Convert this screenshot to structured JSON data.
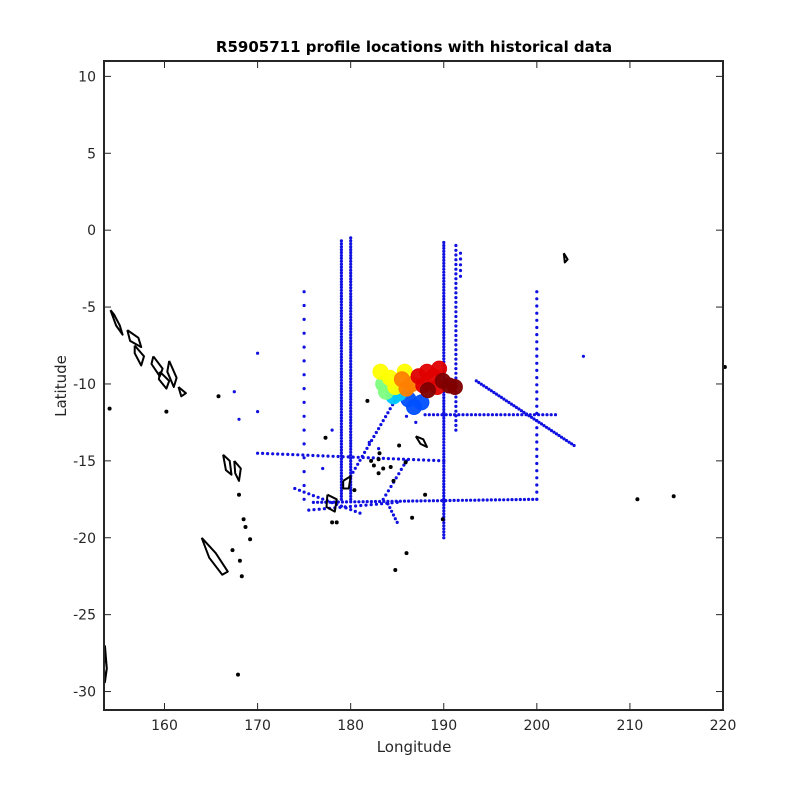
{
  "chart_data": {
    "type": "scatter",
    "title": "R5905711 profile locations with historical data",
    "xlabel": "Longitude",
    "ylabel": "Latitude",
    "xlim": [
      153.5,
      220
    ],
    "ylim": [
      -31.2,
      11
    ],
    "xticks": [
      160,
      170,
      180,
      190,
      200,
      210,
      220
    ],
    "yticks": [
      10,
      5,
      0,
      -5,
      -10,
      -15,
      -20,
      -25,
      -30
    ],
    "grid": false,
    "colors": {
      "historical": "#1010e0",
      "coastline": "#000000",
      "profile_colormap": [
        "#0000a0",
        "#0050ff",
        "#00c8ff",
        "#80ff80",
        "#ffff00",
        "#ff8000",
        "#e00000",
        "#800000"
      ]
    },
    "historical_tracks": [
      {
        "x": [
          179,
          179
        ],
        "y": [
          -0.7,
          -17.5
        ],
        "n": 90
      },
      {
        "x": [
          180,
          180
        ],
        "y": [
          -0.5,
          -17.5
        ],
        "n": 90
      },
      {
        "x": [
          190,
          190
        ],
        "y": [
          -0.8,
          -20
        ],
        "n": 100
      },
      {
        "x": [
          191.3,
          191.3
        ],
        "y": [
          -1,
          -13
        ],
        "n": 40
      },
      {
        "x": [
          191.8,
          191.8
        ],
        "y": [
          -1.5,
          -3
        ],
        "n": 5
      },
      {
        "x": [
          175,
          175
        ],
        "y": [
          -4,
          -17.5
        ],
        "n": 16
      },
      {
        "x": [
          200,
          200
        ],
        "y": [
          -4,
          -17.5
        ],
        "n": 30
      },
      {
        "x": [
          170,
          190
        ],
        "y": [
          -14.5,
          -15
        ],
        "n": 38
      },
      {
        "x": [
          176,
          200
        ],
        "y": [
          -17.7,
          -17.5
        ],
        "n": 55
      },
      {
        "x": [
          188,
          202
        ],
        "y": [
          -12,
          -12
        ],
        "n": 32
      },
      {
        "x": [
          193.5,
          204
        ],
        "y": [
          -9.8,
          -14
        ],
        "n": 40
      },
      {
        "x": [
          180,
          186
        ],
        "y": [
          -16,
          -9.8
        ],
        "n": 25
      },
      {
        "x": [
          174,
          181
        ],
        "y": [
          -16.8,
          -18.4
        ],
        "n": 15
      },
      {
        "x": [
          175.5,
          185
        ],
        "y": [
          -18.2,
          -17.7
        ],
        "n": 18
      },
      {
        "x": [
          183.5,
          186
        ],
        "y": [
          -17.5,
          -15
        ],
        "n": 10
      },
      {
        "x": [
          184,
          185
        ],
        "y": [
          -17.8,
          -19
        ],
        "n": 6
      }
    ],
    "historical_points": [
      [
        170,
        -8
      ],
      [
        167.5,
        -10.5
      ],
      [
        170,
        -11.8
      ],
      [
        168,
        -12.3
      ],
      [
        205,
        -8.2
      ],
      [
        186,
        -12.1
      ],
      [
        178,
        -13
      ],
      [
        177,
        -15.5
      ],
      [
        182,
        -13.8
      ],
      [
        183,
        -14.2
      ],
      [
        187,
        -12.5
      ]
    ],
    "profiles": [
      {
        "x": 183.5,
        "y": -10.0,
        "c": 0.45
      },
      {
        "x": 184.2,
        "y": -9.6,
        "c": 0.55
      },
      {
        "x": 184.8,
        "y": -10.2,
        "c": 0.6
      },
      {
        "x": 185.5,
        "y": -9.7,
        "c": 0.65
      },
      {
        "x": 183.2,
        "y": -9.2,
        "c": 0.5
      },
      {
        "x": 184.6,
        "y": -10.8,
        "c": 0.3
      },
      {
        "x": 185.2,
        "y": -10.6,
        "c": 0.25
      },
      {
        "x": 186.2,
        "y": -11.0,
        "c": 0.2
      },
      {
        "x": 186.8,
        "y": -11.5,
        "c": 0.15
      },
      {
        "x": 187.6,
        "y": -11.2,
        "c": 0.18
      },
      {
        "x": 186.0,
        "y": -10.3,
        "c": 0.7
      },
      {
        "x": 186.6,
        "y": -10.0,
        "c": 0.75
      },
      {
        "x": 187.3,
        "y": -9.5,
        "c": 0.8
      },
      {
        "x": 187.8,
        "y": -10.1,
        "c": 0.85
      },
      {
        "x": 188.2,
        "y": -9.2,
        "c": 0.82
      },
      {
        "x": 188.9,
        "y": -9.5,
        "c": 0.88
      },
      {
        "x": 189.3,
        "y": -10.2,
        "c": 0.9
      },
      {
        "x": 189.9,
        "y": -9.8,
        "c": 0.93
      },
      {
        "x": 190.6,
        "y": -10.1,
        "c": 0.96
      },
      {
        "x": 191.2,
        "y": -10.2,
        "c": 0.97
      },
      {
        "x": 189.5,
        "y": -9.0,
        "c": 0.85
      },
      {
        "x": 188.3,
        "y": -10.4,
        "c": 0.98
      },
      {
        "x": 183.8,
        "y": -10.5,
        "c": 0.4
      },
      {
        "x": 185.8,
        "y": -9.2,
        "c": 0.6
      }
    ],
    "coastlines": [
      [
        [
          154.2,
          -5.2
        ],
        [
          154.8,
          -6.2
        ],
        [
          155.5,
          -6.8
        ],
        [
          155.2,
          -6.2
        ],
        [
          154.6,
          -5.5
        ],
        [
          154.2,
          -5.2
        ]
      ],
      [
        [
          156.0,
          -6.5
        ],
        [
          157.2,
          -7.0
        ],
        [
          157.5,
          -7.6
        ],
        [
          156.3,
          -7.2
        ],
        [
          156.0,
          -6.5
        ]
      ],
      [
        [
          156.8,
          -7.5
        ],
        [
          157.8,
          -8.2
        ],
        [
          157.5,
          -8.8
        ],
        [
          156.8,
          -8.0
        ],
        [
          156.8,
          -7.5
        ]
      ],
      [
        [
          158.8,
          -8.2
        ],
        [
          159.8,
          -9.0
        ],
        [
          159.5,
          -9.5
        ],
        [
          158.6,
          -8.7
        ],
        [
          158.8,
          -8.2
        ]
      ],
      [
        [
          160.5,
          -8.5
        ],
        [
          161.3,
          -9.6
        ],
        [
          161.0,
          -10.2
        ],
        [
          160.3,
          -9.2
        ],
        [
          160.5,
          -8.5
        ]
      ],
      [
        [
          159.5,
          -9.2
        ],
        [
          160.5,
          -9.8
        ],
        [
          160.2,
          -10.3
        ],
        [
          159.4,
          -9.7
        ],
        [
          159.5,
          -9.2
        ]
      ],
      [
        [
          161.5,
          -10.2
        ],
        [
          162.3,
          -10.6
        ],
        [
          161.8,
          -10.8
        ],
        [
          161.5,
          -10.2
        ]
      ],
      [
        [
          166.3,
          -14.6
        ],
        [
          167.0,
          -15.0
        ],
        [
          167.2,
          -15.9
        ],
        [
          166.6,
          -15.6
        ],
        [
          166.3,
          -14.6
        ]
      ],
      [
        [
          167.5,
          -15.0
        ],
        [
          168.2,
          -15.5
        ],
        [
          168.0,
          -16.3
        ],
        [
          167.6,
          -15.8
        ],
        [
          167.5,
          -15.0
        ]
      ],
      [
        [
          164.0,
          -20.0
        ],
        [
          165.5,
          -21.0
        ],
        [
          166.8,
          -22.2
        ],
        [
          166.2,
          -22.4
        ],
        [
          164.8,
          -21.3
        ],
        [
          164.0,
          -20.0
        ]
      ],
      [
        [
          177.5,
          -17.2
        ],
        [
          178.5,
          -17.5
        ],
        [
          178.3,
          -18.3
        ],
        [
          177.4,
          -18.0
        ],
        [
          177.5,
          -17.2
        ]
      ],
      [
        [
          179.2,
          -16.3
        ],
        [
          180.0,
          -16.0
        ],
        [
          179.8,
          -16.8
        ],
        [
          179.2,
          -16.8
        ],
        [
          179.2,
          -16.3
        ]
      ],
      [
        [
          187.0,
          -13.4
        ],
        [
          187.8,
          -13.6
        ],
        [
          188.2,
          -14.1
        ],
        [
          187.5,
          -13.9
        ],
        [
          187.0,
          -13.4
        ]
      ],
      [
        [
          202.9,
          -1.5
        ],
        [
          203.3,
          -1.9
        ],
        [
          203.0,
          -2.1
        ],
        [
          202.9,
          -1.5
        ]
      ],
      [
        [
          153.6,
          -27.0
        ],
        [
          153.8,
          -28.5
        ],
        [
          153.6,
          -29.4
        ],
        [
          153.5,
          -28.5
        ],
        [
          153.6,
          -27.0
        ]
      ]
    ],
    "coast_dots": [
      [
        154.1,
        -11.6
      ],
      [
        160.2,
        -11.8
      ],
      [
        165.8,
        -10.8
      ],
      [
        168.0,
        -17.2
      ],
      [
        168.5,
        -18.8
      ],
      [
        168.7,
        -19.3
      ],
      [
        169.2,
        -20.1
      ],
      [
        167.3,
        -20.8
      ],
      [
        168.1,
        -21.5
      ],
      [
        168.3,
        -22.5
      ],
      [
        167.9,
        -28.9
      ],
      [
        178.0,
        -19.0
      ],
      [
        180.4,
        -16.9
      ],
      [
        182.2,
        -15.0
      ],
      [
        183.0,
        -14.9
      ],
      [
        183.5,
        -15.5
      ],
      [
        184.3,
        -15.4
      ],
      [
        183.1,
        -14.5
      ],
      [
        185.2,
        -14.0
      ],
      [
        185.9,
        -15.1
      ],
      [
        186.0,
        -21.0
      ],
      [
        184.8,
        -22.1
      ],
      [
        186.6,
        -18.7
      ],
      [
        189.9,
        -18.8
      ],
      [
        183.0,
        -15.8
      ],
      [
        188.0,
        -17.2
      ],
      [
        182.5,
        -15.3
      ],
      [
        210.8,
        -17.5
      ],
      [
        214.7,
        -17.3
      ],
      [
        220.2,
        -8.9
      ],
      [
        178.5,
        -19.0
      ],
      [
        177.3,
        -13.5
      ],
      [
        181.8,
        -11.1
      ],
      [
        184.6,
        -16.3
      ]
    ]
  }
}
